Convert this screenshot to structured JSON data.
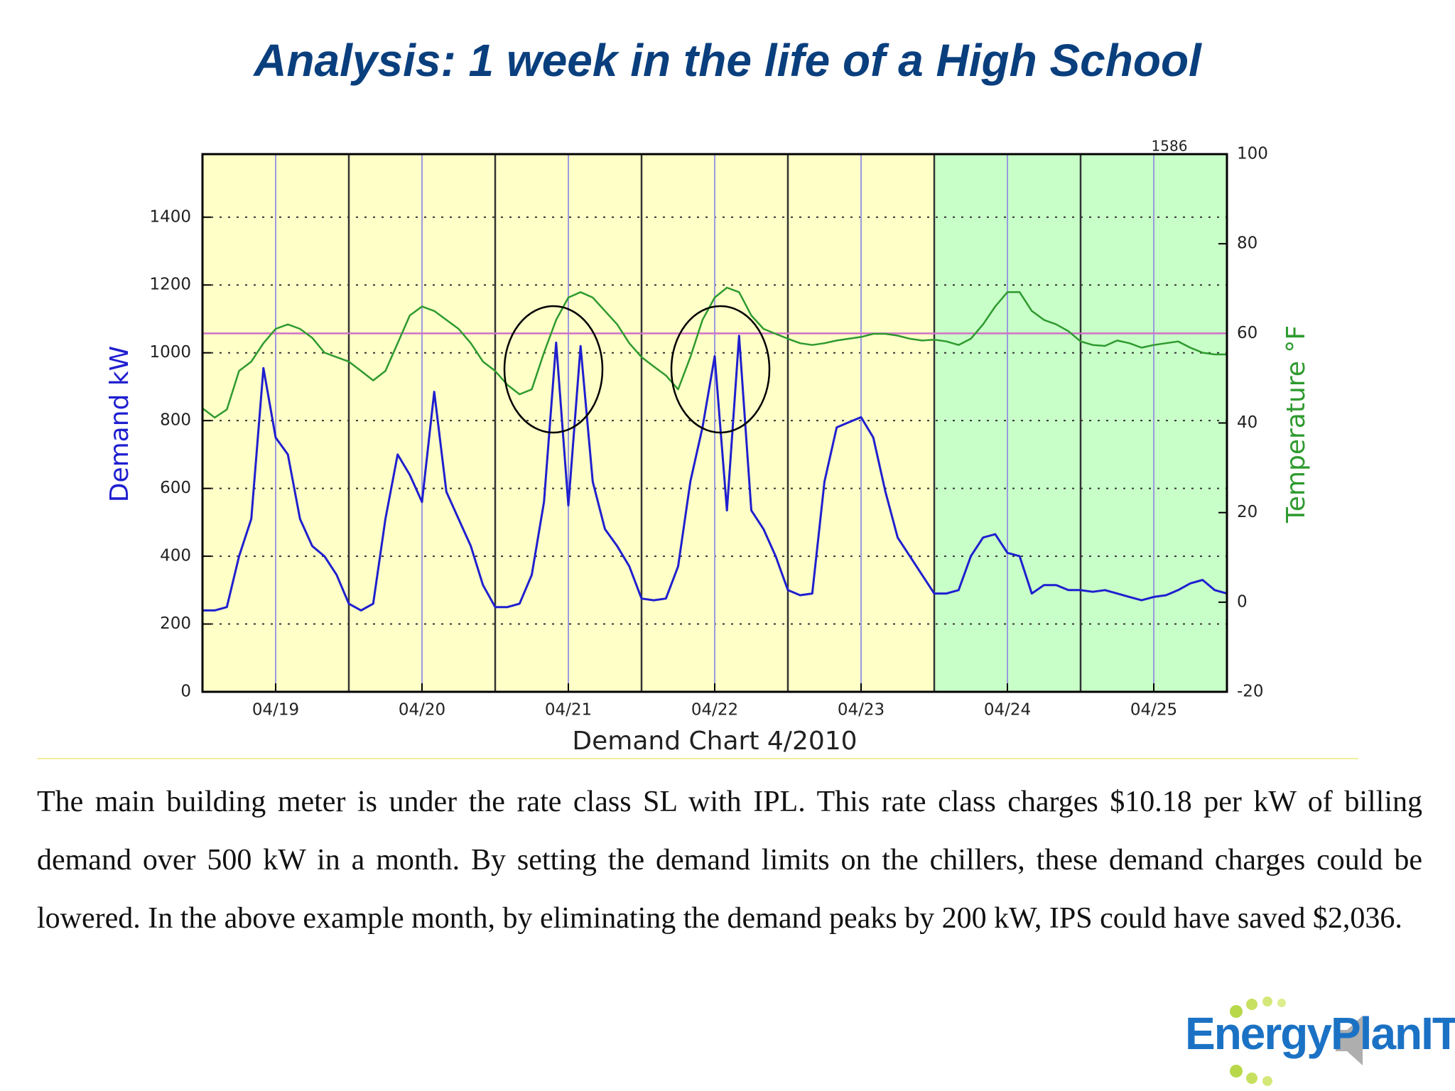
{
  "title": "Analysis: 1 week in the life of a High School",
  "chart_data": {
    "type": "line",
    "xlabel": "Demand Chart 4/2010",
    "ylabel": "Demand  kW",
    "y2label": "Temperature  °F",
    "xlim": [
      0,
      84
    ],
    "xticks": [
      {
        "value": 6,
        "label": "04/19"
      },
      {
        "value": 18,
        "label": "04/20"
      },
      {
        "value": 30,
        "label": "04/21"
      },
      {
        "value": 42,
        "label": "04/22"
      },
      {
        "value": 54,
        "label": "04/23"
      },
      {
        "value": 66,
        "label": "04/24"
      },
      {
        "value": 78,
        "label": "04/25"
      }
    ],
    "ylim": [
      0,
      1586
    ],
    "yticks": [
      0,
      200,
      400,
      600,
      800,
      1000,
      1200,
      1400
    ],
    "y2lim": [
      -20,
      100
    ],
    "y2ticks": [
      -20,
      0,
      20,
      40,
      60,
      80,
      100
    ],
    "grid": true,
    "reference_line": {
      "value": 60,
      "axis": "y2",
      "color": "#d070c8"
    },
    "background_regions": [
      {
        "from": 0,
        "to": 60,
        "color": "#ffffc8"
      },
      {
        "from": 60,
        "to": 84,
        "color": "#c8ffc8"
      }
    ],
    "series": [
      {
        "name": "Demand",
        "color": "#1f1fd0",
        "values": [
          240,
          240,
          250,
          400,
          510,
          955,
          750,
          700,
          510,
          430,
          400,
          345,
          260,
          240,
          260,
          510,
          700,
          640,
          560,
          885,
          590,
          510,
          430,
          315,
          250,
          250,
          260,
          345,
          560,
          1030,
          550,
          1020,
          620,
          480,
          430,
          370,
          275,
          270,
          275,
          370,
          620,
          780,
          990,
          535,
          1050,
          535,
          480,
          400,
          300,
          285,
          290,
          620,
          780,
          795,
          810,
          750,
          590,
          455,
          400,
          345,
          290,
          290,
          300,
          400,
          455,
          465,
          410,
          400,
          290,
          315,
          315,
          300,
          300,
          295,
          300,
          290,
          280,
          270,
          280,
          285,
          300,
          320,
          330,
          300,
          290
        ]
      },
      {
        "name": "Temperature",
        "color": "#2e9a2e",
        "axis": "y2",
        "values": [
          43.3,
          41.2,
          43,
          51.6,
          53.7,
          57.8,
          61,
          62,
          61,
          59,
          55.7,
          54.7,
          53.7,
          51.6,
          49.5,
          51.6,
          57.8,
          64,
          66,
          65,
          63,
          61,
          57.8,
          53.7,
          51.6,
          48.5,
          46.4,
          47.5,
          55.7,
          63,
          68,
          69.2,
          68,
          65,
          62,
          57.8,
          54.7,
          52.6,
          50.6,
          47.5,
          54.7,
          63,
          68,
          70.2,
          69.2,
          64,
          61,
          59.9,
          58.8,
          57.8,
          57.4,
          57.8,
          58.4,
          58.8,
          59.2,
          59.9,
          59.9,
          59.5,
          58.8,
          58.4,
          58.6,
          58.2,
          57.4,
          58.8,
          62,
          66,
          69.2,
          69.2,
          65,
          63,
          62,
          60.5,
          58.2,
          57.4,
          57.2,
          58.4,
          57.8,
          56.8,
          57.4,
          57.8,
          58.2,
          56.8,
          55.7,
          55.3,
          55.3
        ]
      }
    ]
  },
  "paragraph": "The main building meter is under the rate class SL with IPL. This rate class charges $10.18 per kW of billing demand over 500 kW in a month. By setting the demand limits on the chillers, these demand charges could be lowered. In the above example month, by eliminating the demand peaks by 200 kW, IPS could have saved $2,036.",
  "logo": "EnergyPlanIT"
}
